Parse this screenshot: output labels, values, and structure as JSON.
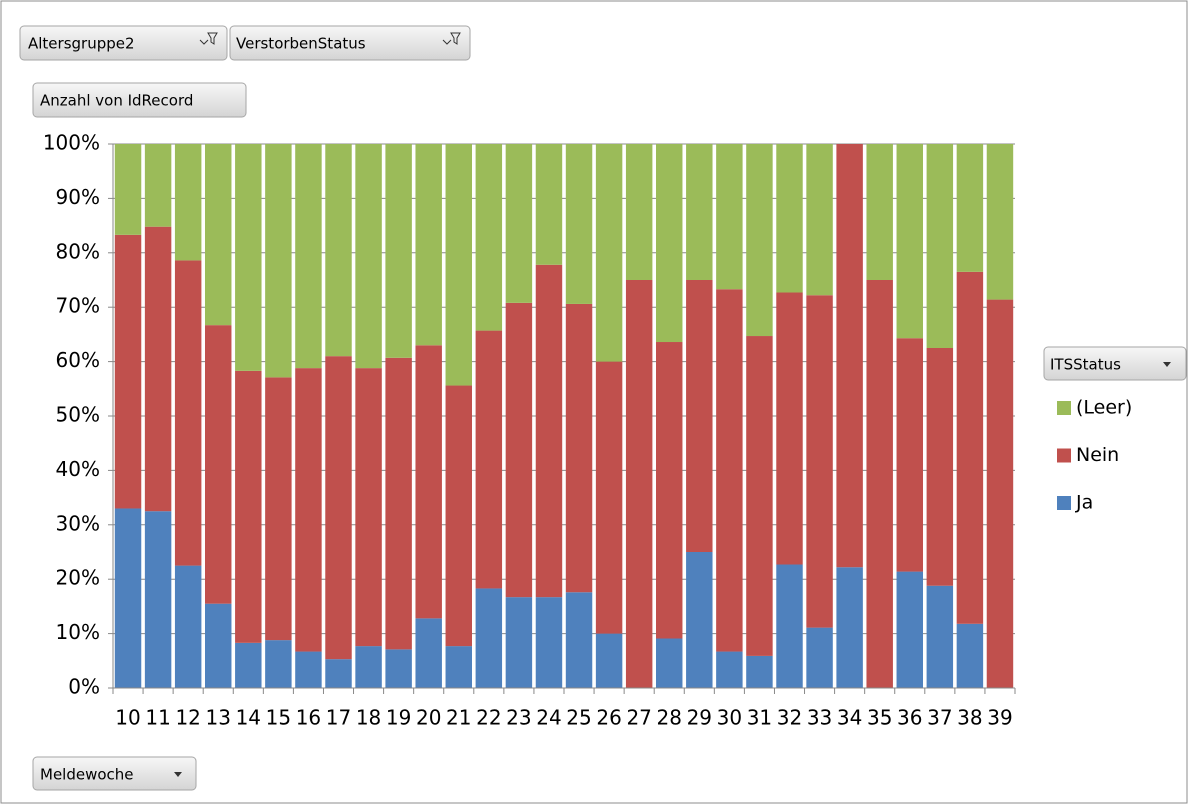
{
  "chart_data": {
    "type": "stacked_bar_100",
    "filter_fields": [
      "Altersgruppe2",
      "VerstorbenStatus"
    ],
    "value_field": "Anzahl von IdRecord",
    "legend_field": "ITSStatus",
    "axis_field": "Meldewoche",
    "categories": [
      "10",
      "11",
      "12",
      "13",
      "14",
      "15",
      "16",
      "17",
      "18",
      "19",
      "20",
      "21",
      "22",
      "23",
      "24",
      "25",
      "26",
      "27",
      "28",
      "29",
      "30",
      "31",
      "32",
      "33",
      "34",
      "35",
      "36",
      "37",
      "38",
      "39"
    ],
    "series": [
      {
        "name": "Ja",
        "color": "#4f81bd",
        "values": [
          33,
          32.5,
          22.5,
          15.5,
          8.3,
          8.8,
          6.7,
          5.3,
          7.7,
          7.1,
          12.8,
          7.7,
          18.3,
          16.7,
          16.7,
          17.6,
          10,
          0,
          9.1,
          25,
          6.7,
          5.9,
          22.7,
          11.1,
          22.2,
          0,
          21.4,
          18.8,
          11.8,
          0
        ]
      },
      {
        "name": "Nein",
        "color": "#c0504d",
        "values": [
          50.3,
          52.3,
          56.1,
          51.2,
          50,
          48.3,
          52.1,
          55.7,
          51.1,
          53.6,
          50.2,
          47.9,
          47.4,
          54.1,
          61.1,
          53,
          50,
          75,
          54.5,
          50,
          66.6,
          58.8,
          50,
          61.1,
          77.8,
          75,
          42.9,
          43.7,
          64.7,
          71.4
        ]
      },
      {
        "name": "(Leer)",
        "color": "#9bbb59",
        "values": [
          16.7,
          15.2,
          21.4,
          33.3,
          41.7,
          42.9,
          41.2,
          39,
          41.2,
          39.3,
          37,
          44.4,
          34.3,
          29.2,
          22.2,
          29.4,
          40,
          25,
          36.4,
          25,
          26.7,
          35.3,
          27.3,
          27.8,
          0,
          25,
          35.7,
          37.5,
          23.5,
          28.6
        ]
      }
    ],
    "ylim": [
      0,
      100
    ],
    "yticks": [
      {
        "value": 0,
        "label": "0%"
      },
      {
        "value": 10,
        "label": "10%"
      },
      {
        "value": 20,
        "label": "20%"
      },
      {
        "value": 30,
        "label": "30%"
      },
      {
        "value": 40,
        "label": "40%"
      },
      {
        "value": 50,
        "label": "50%"
      },
      {
        "value": 60,
        "label": "60%"
      },
      {
        "value": 70,
        "label": "70%"
      },
      {
        "value": 80,
        "label": "80%"
      },
      {
        "value": 90,
        "label": "90%"
      },
      {
        "value": 100,
        "label": "100%"
      }
    ],
    "grid": true
  }
}
